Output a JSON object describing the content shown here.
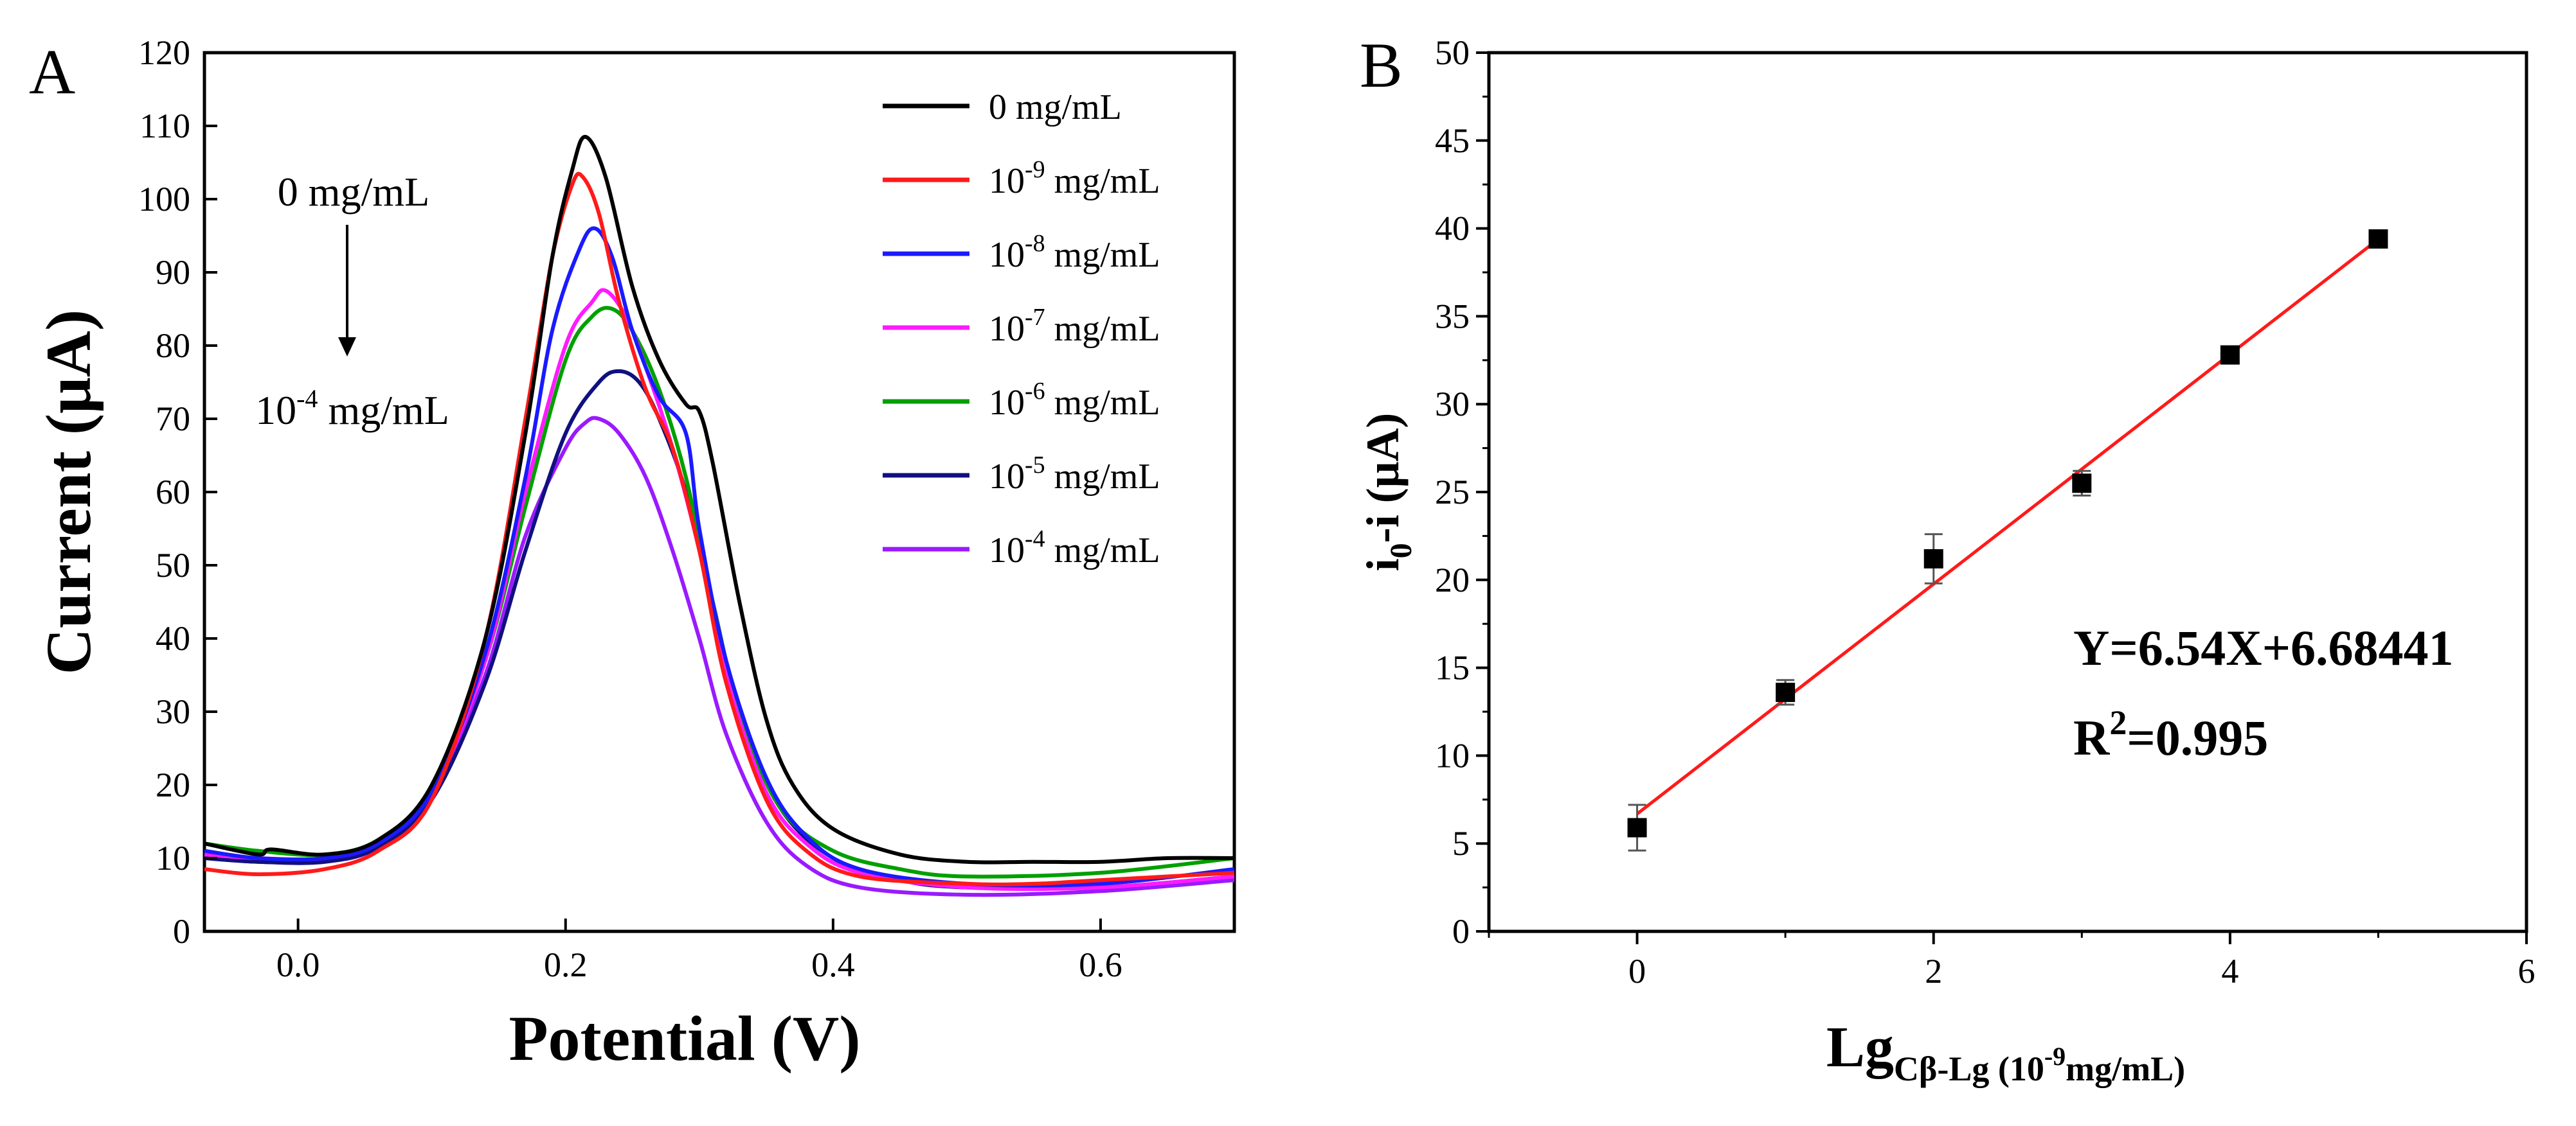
{
  "chart_data": [
    {
      "type": "line",
      "panel_label": "A",
      "xlabel": "Potential (V)",
      "ylabel": "Current (μA)",
      "xlim": [
        -0.07,
        0.7
      ],
      "ylim": [
        0,
        120
      ],
      "xticks": [
        0.0,
        0.2,
        0.4,
        0.6
      ],
      "xtick_labels": [
        "0.0",
        "0.2",
        "0.4",
        "0.6"
      ],
      "yticks": [
        0,
        10,
        20,
        30,
        40,
        50,
        60,
        70,
        80,
        90,
        100,
        110,
        120
      ],
      "ytick_labels": [
        "0",
        "10",
        "20",
        "30",
        "40",
        "50",
        "60",
        "70",
        "80",
        "90",
        "100",
        "110",
        "120"
      ],
      "legend_position": "top-right",
      "annotation": {
        "start_label": "0 mg/mL",
        "end_prefix": "10",
        "end_exp": "-4",
        "end_suffix": " mg/mL"
      },
      "series": [
        {
          "name": "0 mg/mL",
          "base": "0",
          "exp": "",
          "unit": " mg/mL",
          "color": "#000000",
          "points": [
            [
              -0.07,
              12
            ],
            [
              -0.03,
              10.5
            ],
            [
              -0.02,
              11.2
            ],
            [
              0.02,
              10.5
            ],
            [
              0.06,
              12.5
            ],
            [
              0.1,
              20
            ],
            [
              0.14,
              40
            ],
            [
              0.17,
              68
            ],
            [
              0.19,
              92
            ],
            [
              0.205,
              104
            ],
            [
              0.215,
              108.5
            ],
            [
              0.23,
              103
            ],
            [
              0.25,
              88
            ],
            [
              0.27,
              78
            ],
            [
              0.29,
              72
            ],
            [
              0.3,
              71
            ],
            [
              0.31,
              64
            ],
            [
              0.33,
              45
            ],
            [
              0.35,
              29
            ],
            [
              0.37,
              20
            ],
            [
              0.4,
              14
            ],
            [
              0.45,
              10.5
            ],
            [
              0.5,
              9.5
            ],
            [
              0.55,
              9.5
            ],
            [
              0.6,
              9.5
            ],
            [
              0.65,
              10
            ],
            [
              0.7,
              10
            ]
          ]
        },
        {
          "name": "10^-9 mg/mL",
          "base": "10",
          "exp": "-9",
          "unit": " mg/mL",
          "color": "#ff1a1a",
          "points": [
            [
              -0.07,
              8.5
            ],
            [
              -0.03,
              7.8
            ],
            [
              0.02,
              8.5
            ],
            [
              0.06,
              11
            ],
            [
              0.1,
              18
            ],
            [
              0.14,
              40
            ],
            [
              0.17,
              70
            ],
            [
              0.19,
              92
            ],
            [
              0.205,
              102
            ],
            [
              0.213,
              103
            ],
            [
              0.225,
              98
            ],
            [
              0.24,
              86
            ],
            [
              0.26,
              74
            ],
            [
              0.28,
              66
            ],
            [
              0.3,
              52
            ],
            [
              0.32,
              34
            ],
            [
              0.35,
              18
            ],
            [
              0.38,
              11
            ],
            [
              0.42,
              7.5
            ],
            [
              0.5,
              6.5
            ],
            [
              0.55,
              6.5
            ],
            [
              0.6,
              7
            ],
            [
              0.7,
              8
            ]
          ]
        },
        {
          "name": "10^-8 mg/mL",
          "base": "10",
          "exp": "-8",
          "unit": " mg/mL",
          "color": "#1a1aff",
          "points": [
            [
              -0.07,
              11
            ],
            [
              -0.03,
              10
            ],
            [
              0.02,
              10
            ],
            [
              0.06,
              12
            ],
            [
              0.1,
              19
            ],
            [
              0.14,
              38
            ],
            [
              0.17,
              62
            ],
            [
              0.19,
              82
            ],
            [
              0.21,
              93
            ],
            [
              0.222,
              96
            ],
            [
              0.235,
              92
            ],
            [
              0.25,
              82
            ],
            [
              0.27,
              73
            ],
            [
              0.29,
              68
            ],
            [
              0.3,
              55
            ],
            [
              0.32,
              37
            ],
            [
              0.35,
              21
            ],
            [
              0.38,
              13
            ],
            [
              0.42,
              8.5
            ],
            [
              0.5,
              6.5
            ],
            [
              0.6,
              6.5
            ],
            [
              0.7,
              8.5
            ]
          ]
        },
        {
          "name": "10^-7 mg/mL",
          "base": "10",
          "exp": "-7",
          "unit": " mg/mL",
          "color": "#ff1aff",
          "points": [
            [
              -0.07,
              10.5
            ],
            [
              -0.03,
              10
            ],
            [
              0.02,
              10
            ],
            [
              0.06,
              12
            ],
            [
              0.1,
              19
            ],
            [
              0.14,
              37
            ],
            [
              0.17,
              60
            ],
            [
              0.2,
              80
            ],
            [
              0.22,
              86
            ],
            [
              0.23,
              87.5
            ],
            [
              0.245,
              84
            ],
            [
              0.26,
              77
            ],
            [
              0.28,
              66
            ],
            [
              0.3,
              52
            ],
            [
              0.32,
              35
            ],
            [
              0.35,
              19
            ],
            [
              0.38,
              12
            ],
            [
              0.42,
              8
            ],
            [
              0.5,
              6
            ],
            [
              0.6,
              6
            ],
            [
              0.7,
              7.5
            ]
          ]
        },
        {
          "name": "10^-6 mg/mL",
          "base": "10",
          "exp": "-6",
          "unit": " mg/mL",
          "color": "#00a000",
          "points": [
            [
              -0.07,
              12
            ],
            [
              -0.03,
              11
            ],
            [
              0.02,
              10.5
            ],
            [
              0.06,
              12.5
            ],
            [
              0.1,
              19.5
            ],
            [
              0.14,
              37
            ],
            [
              0.17,
              58
            ],
            [
              0.2,
              78
            ],
            [
              0.22,
              84
            ],
            [
              0.235,
              85
            ],
            [
              0.25,
              82
            ],
            [
              0.27,
              74
            ],
            [
              0.29,
              62
            ],
            [
              0.31,
              45
            ],
            [
              0.33,
              30
            ],
            [
              0.36,
              17
            ],
            [
              0.4,
              11
            ],
            [
              0.45,
              8.5
            ],
            [
              0.5,
              7.5
            ],
            [
              0.6,
              8
            ],
            [
              0.7,
              10
            ]
          ]
        },
        {
          "name": "10^-5 mg/mL",
          "base": "10",
          "exp": "-5",
          "unit": " mg/mL",
          "color": "#101080",
          "points": [
            [
              -0.07,
              10
            ],
            [
              -0.03,
              9.5
            ],
            [
              0.02,
              9.5
            ],
            [
              0.06,
              11.5
            ],
            [
              0.1,
              18
            ],
            [
              0.14,
              34
            ],
            [
              0.17,
              52
            ],
            [
              0.2,
              68
            ],
            [
              0.225,
              75
            ],
            [
              0.24,
              76.5
            ],
            [
              0.255,
              75
            ],
            [
              0.27,
              70
            ],
            [
              0.29,
              60
            ],
            [
              0.31,
              45
            ],
            [
              0.33,
              30
            ],
            [
              0.36,
              17
            ],
            [
              0.4,
              10
            ],
            [
              0.45,
              7
            ],
            [
              0.5,
              6
            ],
            [
              0.6,
              6
            ],
            [
              0.7,
              7.5
            ]
          ]
        },
        {
          "name": "10^-4 mg/mL",
          "base": "10",
          "exp": "-4",
          "unit": " mg/mL",
          "color": "#9a1aff",
          "points": [
            [
              -0.07,
              10
            ],
            [
              -0.03,
              9.5
            ],
            [
              0.02,
              9.5
            ],
            [
              0.06,
              11.5
            ],
            [
              0.1,
              18.5
            ],
            [
              0.14,
              35
            ],
            [
              0.17,
              54
            ],
            [
              0.2,
              66
            ],
            [
              0.215,
              69.5
            ],
            [
              0.225,
              70
            ],
            [
              0.24,
              68
            ],
            [
              0.26,
              62
            ],
            [
              0.28,
              52
            ],
            [
              0.3,
              40
            ],
            [
              0.32,
              27
            ],
            [
              0.35,
              15
            ],
            [
              0.38,
              9
            ],
            [
              0.42,
              6
            ],
            [
              0.5,
              5
            ],
            [
              0.6,
              5.5
            ],
            [
              0.7,
              7
            ]
          ]
        }
      ]
    },
    {
      "type": "scatter",
      "panel_label": "B",
      "xlabel_main": "Lg",
      "xlabel_sub_a": "Cβ-Lg",
      "xlabel_sub_b": " (",
      "xlabel_base": "10",
      "xlabel_exp": "-9",
      "xlabel_tail": "mg/mL",
      "xlabel_close": ")",
      "ylabel_main": "i",
      "ylabel_sub": "0",
      "ylabel_tail": "-i (μA)",
      "xlim": [
        -1,
        6
      ],
      "ylim": [
        0,
        50
      ],
      "xticks": [
        0,
        2,
        4,
        6
      ],
      "xtick_labels": [
        "0",
        "2",
        "4",
        "6"
      ],
      "yticks": [
        0,
        5,
        10,
        15,
        20,
        25,
        30,
        35,
        40,
        45,
        50
      ],
      "ytick_labels": [
        "0",
        "5",
        "10",
        "15",
        "20",
        "25",
        "30",
        "35",
        "40",
        "45",
        "50"
      ],
      "x": [
        0,
        1,
        2,
        3,
        4,
        5
      ],
      "y": [
        5.9,
        13.6,
        21.2,
        25.5,
        32.8,
        39.4
      ],
      "yerr": [
        1.3,
        0.7,
        1.4,
        0.7,
        0.4,
        0.3
      ],
      "marker_color": "#000000",
      "fit": {
        "slope": 6.54,
        "intercept": 6.68441,
        "color": "#ff1a1a",
        "equation": "Y=6.54X+6.68441",
        "r2_prefix": "R",
        "r2_exp": "2",
        "r2_value": "=0.995"
      }
    }
  ]
}
